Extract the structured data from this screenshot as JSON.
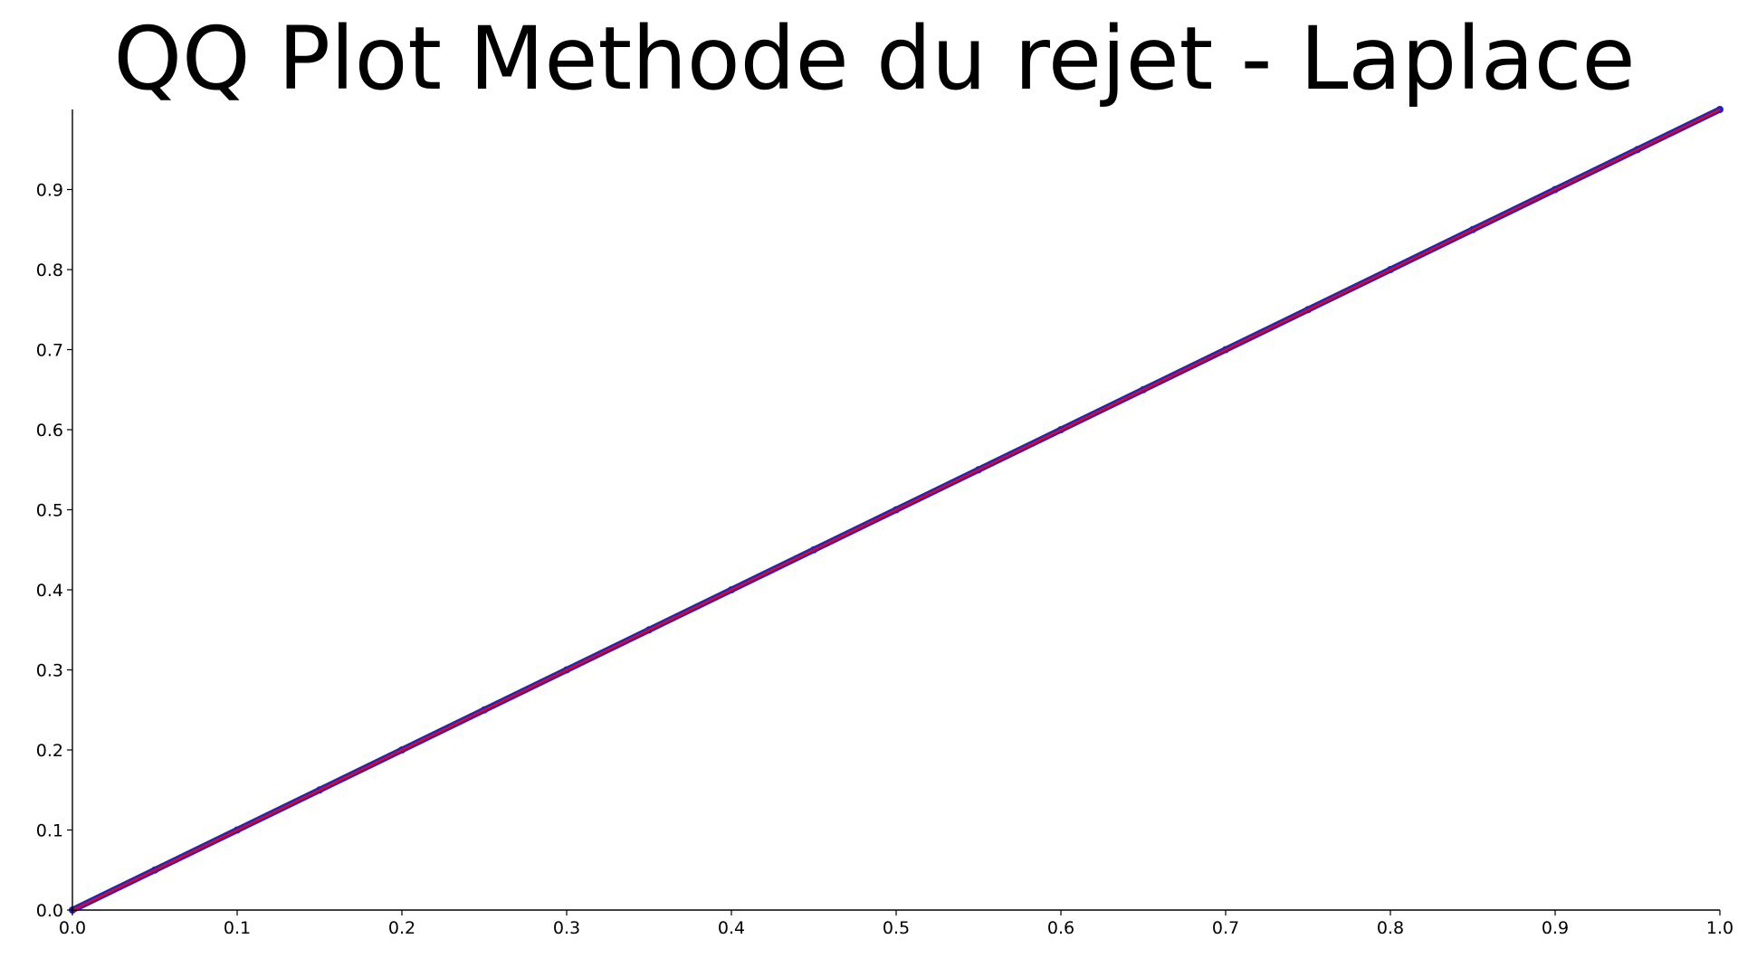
{
  "chart_data": {
    "type": "line",
    "title": "QQ Plot Methode du rejet - Laplace",
    "xlabel": "",
    "ylabel": "",
    "xlim": [
      0.0,
      1.0
    ],
    "ylim": [
      0.0,
      1.0
    ],
    "grid": false,
    "x_ticks": [
      "0.0",
      "0.1",
      "0.2",
      "0.3",
      "0.4",
      "0.5",
      "0.6",
      "0.7",
      "0.8",
      "0.9",
      "1.0"
    ],
    "y_ticks": [
      "0.0",
      "0.1",
      "0.2",
      "0.3",
      "0.4",
      "0.5",
      "0.6",
      "0.7",
      "0.8",
      "0.9"
    ],
    "series": [
      {
        "kind": "scatter",
        "color": "#2222cc",
        "x": [
          0.0,
          0.05,
          0.1,
          0.15,
          0.2,
          0.25,
          0.3,
          0.35,
          0.4,
          0.45,
          0.5,
          0.55,
          0.6,
          0.65,
          0.7,
          0.75,
          0.8,
          0.85,
          0.9,
          0.95,
          1.0
        ],
        "y": [
          0.0,
          0.05,
          0.1,
          0.15,
          0.2,
          0.25,
          0.3,
          0.35,
          0.4,
          0.45,
          0.5,
          0.55,
          0.6,
          0.65,
          0.7,
          0.75,
          0.8,
          0.85,
          0.9,
          0.95,
          1.0
        ]
      },
      {
        "kind": "line",
        "color": "#ff0000",
        "x": [
          0.0,
          1.0
        ],
        "y": [
          0.0,
          1.0
        ]
      }
    ]
  }
}
